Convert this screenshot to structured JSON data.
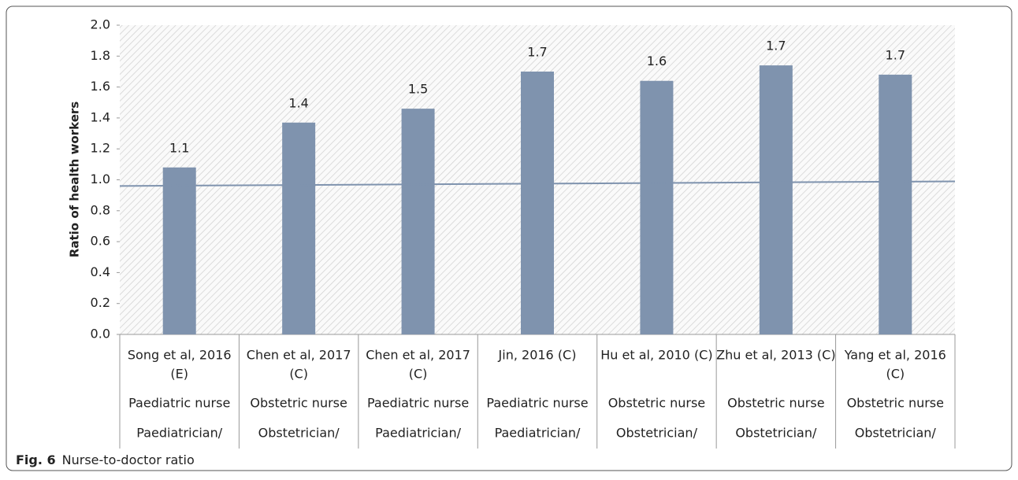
{
  "chart_data": {
    "type": "bar",
    "y_label": "Ratio of health workers",
    "categories": [
      [
        "Song et al, 2016",
        "(E)",
        "Paediatric nurse",
        "Paediatrician/"
      ],
      [
        "Chen et al, 2017",
        "(C)",
        "Obstetric nurse",
        "Obstetrician/"
      ],
      [
        "Chen et al, 2017",
        "(C)",
        "Paediatric nurse",
        "Paediatrician/"
      ],
      [
        "Jin, 2016 (C)",
        null,
        "Paediatric nurse",
        "Paediatrician/"
      ],
      [
        "Hu et al, 2010 (C)",
        null,
        "Obstetric nurse",
        "Obstetrician/"
      ],
      [
        "Zhu et al, 2013 (C)",
        null,
        "Obstetric nurse",
        "Obstetrician/"
      ],
      [
        "Yang et al, 2016",
        "(C)",
        "Obstetric nurse",
        "Obstetrician/"
      ]
    ],
    "values": [
      1.08,
      1.37,
      1.46,
      1.7,
      1.64,
      1.74,
      1.68
    ],
    "value_labels": [
      "1.1",
      "1.4",
      "1.5",
      "1.7",
      "1.6",
      "1.7",
      "1.7"
    ],
    "color": "#7f93ae",
    "reference_line": {
      "color": "#7f93ae",
      "values": [
        0.96,
        0.99
      ]
    },
    "ylim": [
      0,
      2
    ],
    "yticks": [
      {
        "value": 0,
        "label": "0.0"
      },
      0.2,
      0.4,
      0.6,
      0.8,
      {
        "value": 1,
        "label": "1.0"
      },
      1.2,
      1.4,
      1.6,
      1.8,
      {
        "value": 2,
        "label": "2.0"
      }
    ],
    "caption": {
      "label": "Fig. 6",
      "text": "Nurse-to-doctor ratio"
    }
  }
}
